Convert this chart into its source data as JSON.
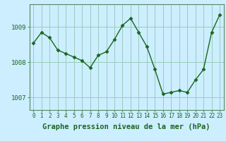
{
  "x": [
    0,
    1,
    2,
    3,
    4,
    5,
    6,
    7,
    8,
    9,
    10,
    11,
    12,
    13,
    14,
    15,
    16,
    17,
    18,
    19,
    20,
    21,
    22,
    23
  ],
  "y": [
    1008.55,
    1008.85,
    1008.7,
    1008.35,
    1008.25,
    1008.15,
    1008.05,
    1007.85,
    1008.2,
    1008.3,
    1008.65,
    1009.05,
    1009.25,
    1008.85,
    1008.45,
    1007.8,
    1007.1,
    1007.15,
    1007.2,
    1007.15,
    1007.5,
    1007.8,
    1008.85,
    1009.35
  ],
  "line_color": "#1a6620",
  "marker": "D",
  "marker_size": 2.5,
  "bg_color": "#cceeff",
  "grid_color": "#99ccbb",
  "xlabel": "Graphe pression niveau de la mer (hPa)",
  "xlabel_fontsize": 7.5,
  "xlabel_color": "#1a6620",
  "yticks": [
    1007,
    1008,
    1009
  ],
  "ylim": [
    1006.65,
    1009.65
  ],
  "xlim": [
    -0.5,
    23.5
  ],
  "xtick_labels": [
    "0",
    "1",
    "2",
    "3",
    "4",
    "5",
    "6",
    "7",
    "8",
    "9",
    "10",
    "11",
    "12",
    "13",
    "14",
    "15",
    "16",
    "17",
    "18",
    "19",
    "20",
    "21",
    "22",
    "23"
  ],
  "tick_color": "#1a6620",
  "ytick_fontsize": 6.5,
  "xtick_fontsize": 5.5,
  "spine_color": "#558866",
  "line_width": 1.0
}
